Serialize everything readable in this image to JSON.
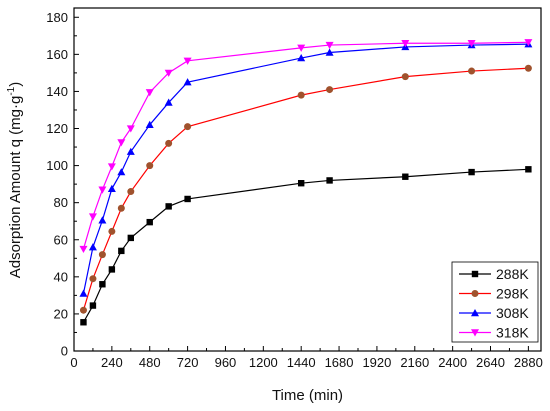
{
  "chart_data": {
    "type": "line",
    "xlabel": "Time (min)",
    "ylabel_main": "Adsorption Amount q (mg·g",
    "ylabel_exp": "-1",
    "ylabel_close": ")",
    "xlim": [
      0,
      2960
    ],
    "ylim": [
      0,
      185
    ],
    "xticks": [
      0,
      240,
      480,
      720,
      960,
      1200,
      1440,
      1680,
      1920,
      2160,
      2400,
      2640,
      2880
    ],
    "yticks": [
      0,
      20,
      40,
      60,
      80,
      100,
      120,
      140,
      160,
      180
    ],
    "legend_position": "bottom-right",
    "series": [
      {
        "name": "288K",
        "color": "#000000",
        "marker": "square",
        "x": [
          60,
          120,
          180,
          240,
          300,
          360,
          480,
          600,
          720,
          1440,
          1620,
          2100,
          2520,
          2880
        ],
        "y": [
          15.5,
          24.5,
          36,
          44,
          54,
          61,
          69.5,
          78,
          82,
          90.5,
          92,
          94,
          96.5,
          98
        ]
      },
      {
        "name": "298K",
        "color": "#ff0000",
        "marker": "circle",
        "x": [
          60,
          120,
          180,
          240,
          300,
          360,
          480,
          600,
          720,
          1440,
          1620,
          2100,
          2520,
          2880
        ],
        "y": [
          22,
          39,
          52,
          64.5,
          77,
          86,
          100,
          112,
          121,
          138,
          141,
          148,
          151,
          152.5
        ]
      },
      {
        "name": "308K",
        "color": "#0000ff",
        "marker": "triangle-up",
        "x": [
          60,
          120,
          180,
          240,
          300,
          360,
          480,
          600,
          720,
          1440,
          1620,
          2100,
          2520,
          2880
        ],
        "y": [
          31,
          56,
          70.5,
          87.5,
          96.5,
          107.5,
          122,
          134,
          145,
          158,
          161,
          164,
          165,
          165.5
        ]
      },
      {
        "name": "318K",
        "color": "#ff00ff",
        "marker": "triangle-down",
        "x": [
          60,
          120,
          180,
          240,
          300,
          360,
          480,
          600,
          720,
          1440,
          1620,
          2100,
          2520,
          2880
        ],
        "y": [
          55,
          72.5,
          87,
          99.5,
          112.5,
          120,
          139.5,
          150,
          156.5,
          163.5,
          165,
          166,
          166,
          166.5
        ]
      }
    ]
  }
}
